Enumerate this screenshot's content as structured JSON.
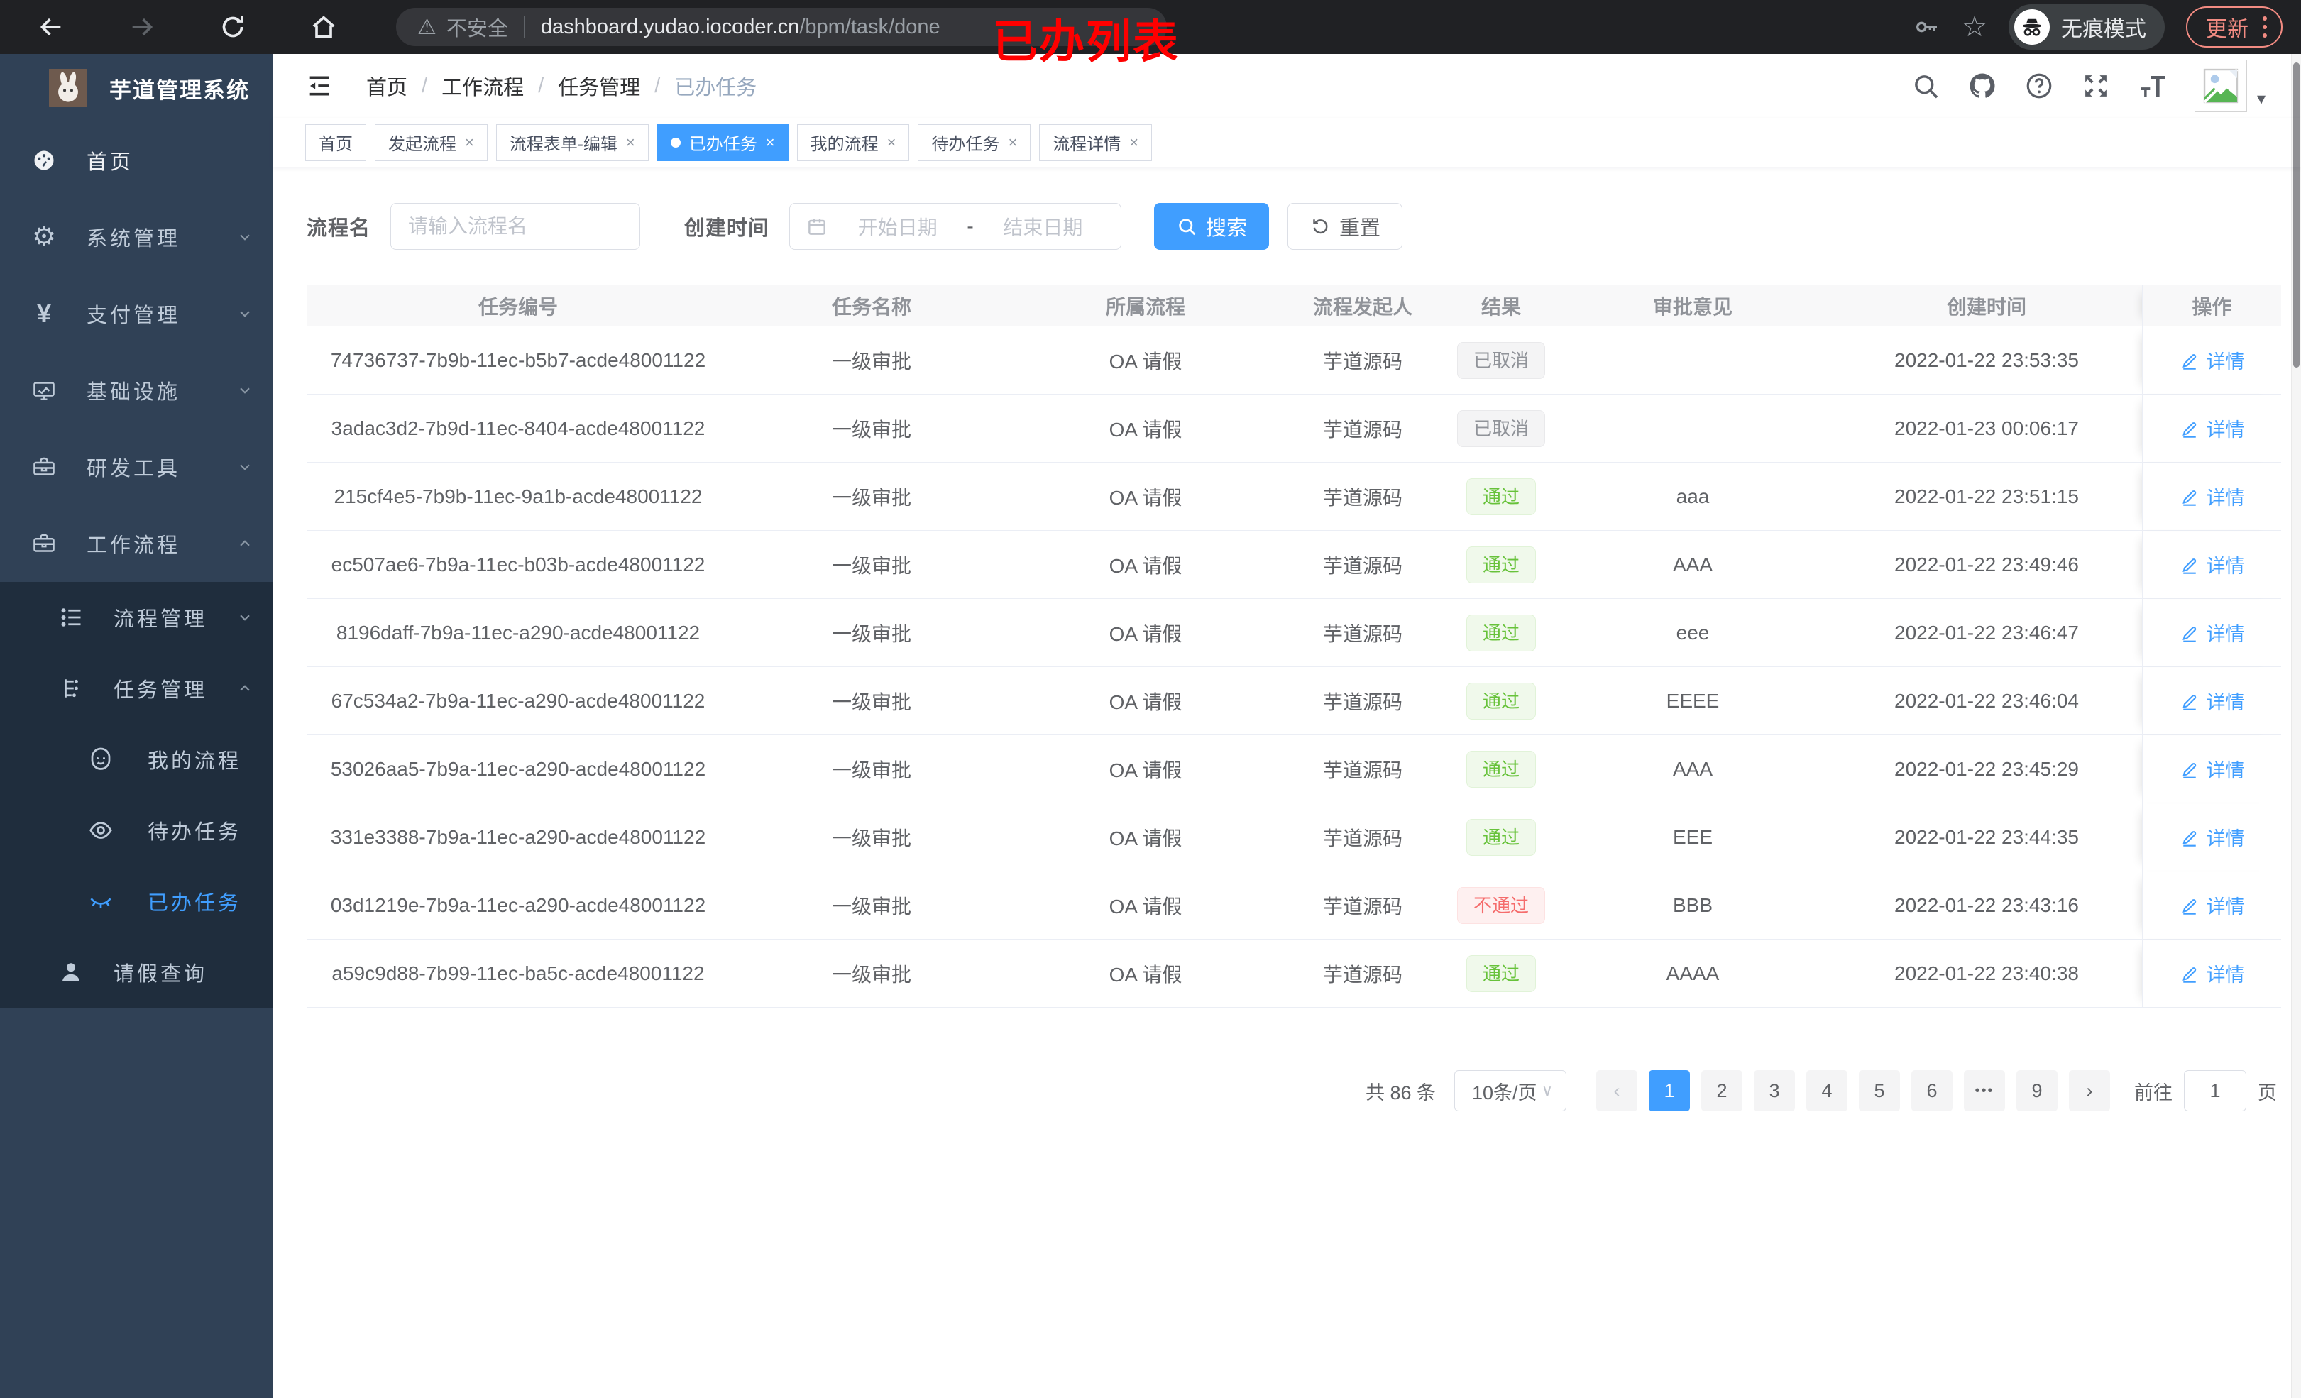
{
  "browser": {
    "security_label": "不安全",
    "url_host": "dashboard.yudao.iocoder.cn",
    "url_path": "/bpm/task/done",
    "incognito_label": "无痕模式",
    "update_label": "更新"
  },
  "annotation": {
    "title": "已办列表"
  },
  "glyphs": {
    "warning": "⚠",
    "star": "☆",
    "close": "×",
    "crumb_sep": "/",
    "prev": "‹",
    "next": "›",
    "caret_down": "∨",
    "dropdown_caret": "▾"
  },
  "sidebar": {
    "app_title": "芋道管理系统",
    "items": [
      {
        "label": "首页",
        "icon": "dashboard-icon",
        "chevron": "",
        "bright": true
      },
      {
        "label": "系统管理",
        "icon": "gear-icon",
        "chevron": "down"
      },
      {
        "label": "支付管理",
        "icon": "yen-icon",
        "chevron": "down"
      },
      {
        "label": "基础设施",
        "icon": "monitor-icon",
        "chevron": "down"
      },
      {
        "label": "研发工具",
        "icon": "toolbox-icon",
        "chevron": "down"
      },
      {
        "label": "工作流程",
        "icon": "briefcase-icon",
        "chevron": "up"
      }
    ],
    "submenu": [
      {
        "label": "流程管理",
        "icon": "list-icon",
        "chevron": "down",
        "level": 1
      },
      {
        "label": "任务管理",
        "icon": "tree-icon",
        "chevron": "up",
        "level": 1
      },
      {
        "label": "我的流程",
        "icon": "robot-icon",
        "level": 2
      },
      {
        "label": "待办任务",
        "icon": "eye-icon",
        "level": 2
      },
      {
        "label": "已办任务",
        "icon": "eye-closed-icon",
        "level": 2,
        "active": true
      },
      {
        "label": "请假查询",
        "icon": "user-icon",
        "level": 1
      }
    ]
  },
  "header": {
    "breadcrumb": [
      "首页",
      "工作流程",
      "任务管理",
      "已办任务"
    ]
  },
  "tabs": [
    {
      "label": "首页",
      "closable": false,
      "active": false
    },
    {
      "label": "发起流程",
      "closable": true,
      "active": false
    },
    {
      "label": "流程表单-编辑",
      "closable": true,
      "active": false
    },
    {
      "label": "已办任务",
      "closable": true,
      "active": true
    },
    {
      "label": "我的流程",
      "closable": true,
      "active": false
    },
    {
      "label": "待办任务",
      "closable": true,
      "active": false
    },
    {
      "label": "流程详情",
      "closable": true,
      "active": false
    }
  ],
  "filters": {
    "name_label": "流程名",
    "name_placeholder": "请输入流程名",
    "time_label": "创建时间",
    "start_placeholder": "开始日期",
    "range_separator": "-",
    "end_placeholder": "结束日期",
    "search_label": "搜索",
    "reset_label": "重置"
  },
  "table": {
    "columns": [
      "任务编号",
      "任务名称",
      "所属流程",
      "流程发起人",
      "结果",
      "审批意见",
      "创建时间",
      "操作"
    ],
    "detail_label": "详情",
    "rows": [
      {
        "id": "74736737-7b9b-11ec-b5b7-acde48001122",
        "name": "一级审批",
        "process": "OA 请假",
        "initiator": "芋道源码",
        "result": "已取消",
        "result_type": "info",
        "opinion": "",
        "created": "2022-01-22 23:53:35"
      },
      {
        "id": "3adac3d2-7b9d-11ec-8404-acde48001122",
        "name": "一级审批",
        "process": "OA 请假",
        "initiator": "芋道源码",
        "result": "已取消",
        "result_type": "info",
        "opinion": "",
        "created": "2022-01-23 00:06:17"
      },
      {
        "id": "215cf4e5-7b9b-11ec-9a1b-acde48001122",
        "name": "一级审批",
        "process": "OA 请假",
        "initiator": "芋道源码",
        "result": "通过",
        "result_type": "success",
        "opinion": "aaa",
        "created": "2022-01-22 23:51:15"
      },
      {
        "id": "ec507ae6-7b9a-11ec-b03b-acde48001122",
        "name": "一级审批",
        "process": "OA 请假",
        "initiator": "芋道源码",
        "result": "通过",
        "result_type": "success",
        "opinion": "AAA",
        "created": "2022-01-22 23:49:46"
      },
      {
        "id": "8196daff-7b9a-11ec-a290-acde48001122",
        "name": "一级审批",
        "process": "OA 请假",
        "initiator": "芋道源码",
        "result": "通过",
        "result_type": "success",
        "opinion": "eee",
        "created": "2022-01-22 23:46:47"
      },
      {
        "id": "67c534a2-7b9a-11ec-a290-acde48001122",
        "name": "一级审批",
        "process": "OA 请假",
        "initiator": "芋道源码",
        "result": "通过",
        "result_type": "success",
        "opinion": "EEEE",
        "created": "2022-01-22 23:46:04"
      },
      {
        "id": "53026aa5-7b9a-11ec-a290-acde48001122",
        "name": "一级审批",
        "process": "OA 请假",
        "initiator": "芋道源码",
        "result": "通过",
        "result_type": "success",
        "opinion": "AAA",
        "created": "2022-01-22 23:45:29"
      },
      {
        "id": "331e3388-7b9a-11ec-a290-acde48001122",
        "name": "一级审批",
        "process": "OA 请假",
        "initiator": "芋道源码",
        "result": "通过",
        "result_type": "success",
        "opinion": "EEE",
        "created": "2022-01-22 23:44:35"
      },
      {
        "id": "03d1219e-7b9a-11ec-a290-acde48001122",
        "name": "一级审批",
        "process": "OA 请假",
        "initiator": "芋道源码",
        "result": "不通过",
        "result_type": "danger",
        "opinion": "BBB",
        "created": "2022-01-22 23:43:16"
      },
      {
        "id": "a59c9d88-7b99-11ec-ba5c-acde48001122",
        "name": "一级审批",
        "process": "OA 请假",
        "initiator": "芋道源码",
        "result": "通过",
        "result_type": "success",
        "opinion": "AAAA",
        "created": "2022-01-22 23:40:38"
      }
    ]
  },
  "pagination": {
    "total_label": "共 86 条",
    "page_size_label": "10条/页",
    "pages": [
      "1",
      "2",
      "3",
      "4",
      "5",
      "6",
      "•••",
      "9"
    ],
    "active_page": "1",
    "goto_label": "前往",
    "goto_value": "1",
    "page_suffix": "页"
  },
  "colors": {
    "accent": "#409eff",
    "success": "#67c23a",
    "danger": "#f56c6c",
    "info": "#909399",
    "sidebar_bg": "#304156",
    "submenu_bg": "#1f2d3d",
    "sidebar_text": "#bfcbd9",
    "annotation": "#fe0000",
    "chrome_bg": "#202124",
    "update": "#f28b82"
  }
}
